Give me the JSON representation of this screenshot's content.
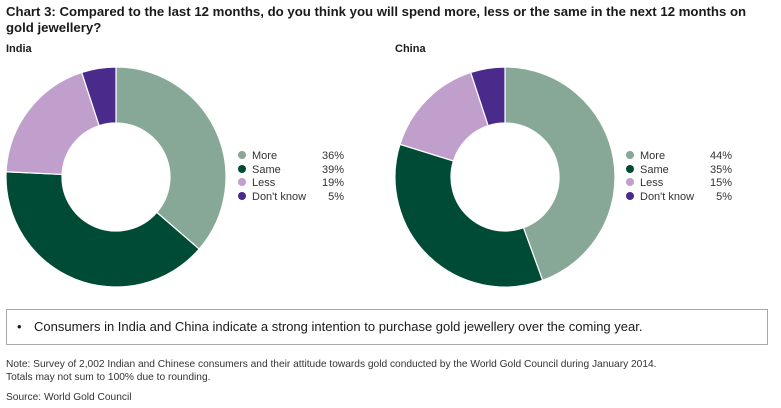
{
  "title": "Chart 3: Compared to the last 12 months, do you think you will spend more, less or the same in the next 12 months on gold jewellery?",
  "chart_data": [
    {
      "type": "pie",
      "variant": "donut",
      "title": "India",
      "categories": [
        "More",
        "Same",
        "Less",
        "Don't know"
      ],
      "values": [
        36,
        39,
        19,
        5
      ],
      "labels": [
        "36%",
        "39%",
        "19%",
        "5%"
      ],
      "colors": [
        "#87a897",
        "#004b35",
        "#c09fcd",
        "#4a2a8b"
      ],
      "legend": "right"
    },
    {
      "type": "pie",
      "variant": "donut",
      "title": "China",
      "categories": [
        "More",
        "Same",
        "Less",
        "Don't know"
      ],
      "values": [
        44,
        35,
        15,
        5
      ],
      "labels": [
        "44%",
        "35%",
        "15%",
        "5%"
      ],
      "colors": [
        "#87a897",
        "#004b35",
        "#c09fcd",
        "#4a2a8b"
      ],
      "legend": "right"
    }
  ],
  "callout": {
    "bullet": "•",
    "text": "Consumers in India and China indicate a strong intention to purchase gold jewellery over the coming year."
  },
  "note": {
    "line1": "Note: Survey of 2,002 Indian and Chinese consumers and their attitude towards gold conducted by the World Gold Council during January 2014.",
    "line2": "Totals may not sum to 100% due to rounding."
  },
  "source": "Source: World Gold Council"
}
